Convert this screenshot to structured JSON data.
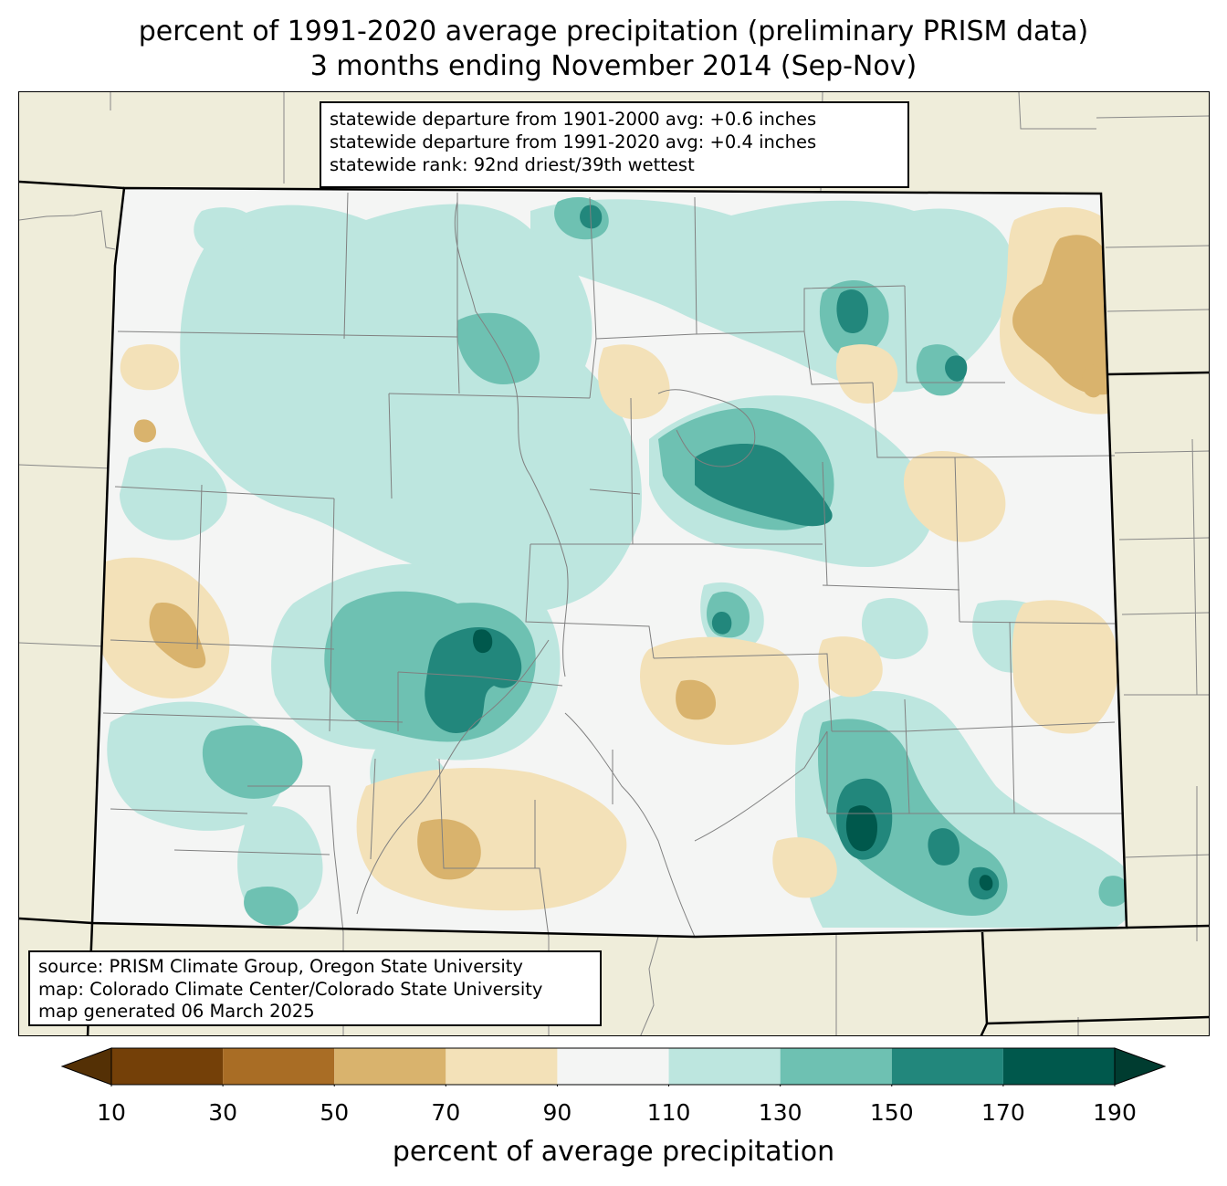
{
  "title": {
    "line1": "percent of 1991-2020 average precipitation (preliminary PRISM data)",
    "line2": "3 months ending November 2014 (Sep-Nov)"
  },
  "stats": {
    "line1": "statewide departure from 1901-2000 avg: +0.6 inches",
    "line2": "statewide departure from 1991-2020 avg: +0.4 inches",
    "line3": "statewide rank: 92nd driest/39th wettest"
  },
  "credits": {
    "source": "source: PRISM Climate Group, Oregon State University",
    "map": "map: Colorado Climate Center/Colorado State University",
    "generated": "map generated 06 March 2025"
  },
  "colorbar": {
    "label": "percent of average precipitation",
    "ticks": [
      "10",
      "30",
      "50",
      "70",
      "90",
      "110",
      "130",
      "150",
      "170",
      "190"
    ],
    "under_color": "#543005",
    "over_color": "#003c30",
    "bins": [
      {
        "from": 10,
        "to": 30,
        "color": "#744008"
      },
      {
        "from": 30,
        "to": 50,
        "color": "#a96d25"
      },
      {
        "from": 50,
        "to": 70,
        "color": "#d9b36d"
      },
      {
        "from": 70,
        "to": 90,
        "color": "#f3e1b8"
      },
      {
        "from": 90,
        "to": 110,
        "color": "#f4f5f4"
      },
      {
        "from": 110,
        "to": 130,
        "color": "#bde6df"
      },
      {
        "from": 130,
        "to": 150,
        "color": "#6ec1b2"
      },
      {
        "from": 150,
        "to": 170,
        "color": "#22877c"
      },
      {
        "from": 170,
        "to": 190,
        "color": "#00584c"
      }
    ]
  },
  "colors": {
    "background_land": "#efedda",
    "state_border": "#000000",
    "county_line": "#808080"
  }
}
